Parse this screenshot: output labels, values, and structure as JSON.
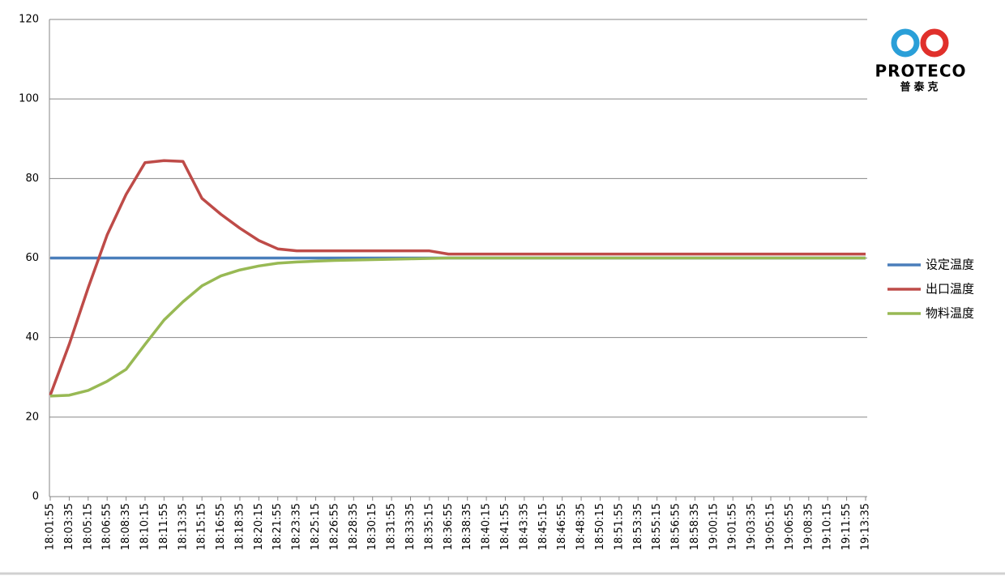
{
  "chart_data": {
    "type": "line",
    "annotations": [
      "PROTECO",
      "普泰克"
    ],
    "categories": [
      "18:01:55",
      "18:03:35",
      "18:05:15",
      "18:06:55",
      "18:08:35",
      "18:10:15",
      "18:11:55",
      "18:13:35",
      "18:15:15",
      "18:16:55",
      "18:18:35",
      "18:20:15",
      "18:21:55",
      "18:23:35",
      "18:25:15",
      "18:26:55",
      "18:28:35",
      "18:30:15",
      "18:31:55",
      "18:33:35",
      "18:35:15",
      "18:36:55",
      "18:38:35",
      "18:40:15",
      "18:41:55",
      "18:43:35",
      "18:45:15",
      "18:46:55",
      "18:48:35",
      "18:50:15",
      "18:51:55",
      "18:53:35",
      "18:55:15",
      "18:56:55",
      "18:58:35",
      "19:00:15",
      "19:01:55",
      "19:03:35",
      "19:05:15",
      "19:06:55",
      "19:08:35",
      "19:10:15",
      "19:11:55",
      "19:13:35"
    ],
    "series": [
      {
        "name": "设定温度",
        "color": "#4a7ebb",
        "values": [
          60,
          60,
          60,
          60,
          60,
          60,
          60,
          60,
          60,
          60,
          60,
          60,
          60,
          60,
          60,
          60,
          60,
          60,
          60,
          60,
          60,
          60,
          60,
          60,
          60,
          60,
          60,
          60,
          60,
          60,
          60,
          60,
          60,
          60,
          60,
          60,
          60,
          60,
          60,
          60,
          60,
          60,
          60,
          60
        ]
      },
      {
        "name": "出口温度",
        "color": "#be4b48",
        "values": [
          25.5,
          38.3,
          52.5,
          65.8,
          76,
          84,
          84.5,
          84.3,
          75,
          71,
          67.5,
          64.4,
          62.3,
          61.8,
          61.8,
          61.8,
          61.8,
          61.8,
          61.8,
          61.8,
          61.8,
          61,
          61,
          61,
          61,
          61,
          61,
          61,
          61,
          61,
          61,
          61,
          61,
          61,
          61,
          61,
          61,
          61,
          61,
          61,
          61,
          61,
          61,
          61
        ]
      },
      {
        "name": "物料温度",
        "color": "#98b954",
        "values": [
          25.3,
          25.5,
          26.7,
          29,
          32,
          38.3,
          44.4,
          49,
          53,
          55.5,
          57,
          58,
          58.7,
          59,
          59.2,
          59.4,
          59.5,
          59.6,
          59.7,
          59.8,
          59.9,
          60,
          60,
          60,
          60,
          60,
          60,
          60,
          60,
          60,
          60,
          60,
          60,
          60,
          60,
          60,
          60,
          60,
          60,
          60,
          60,
          60,
          60,
          60
        ]
      }
    ],
    "ylim": [
      0,
      120
    ],
    "yticks": [
      0,
      20,
      40,
      60,
      80,
      100,
      120
    ],
    "grid": true,
    "legend": "right"
  }
}
